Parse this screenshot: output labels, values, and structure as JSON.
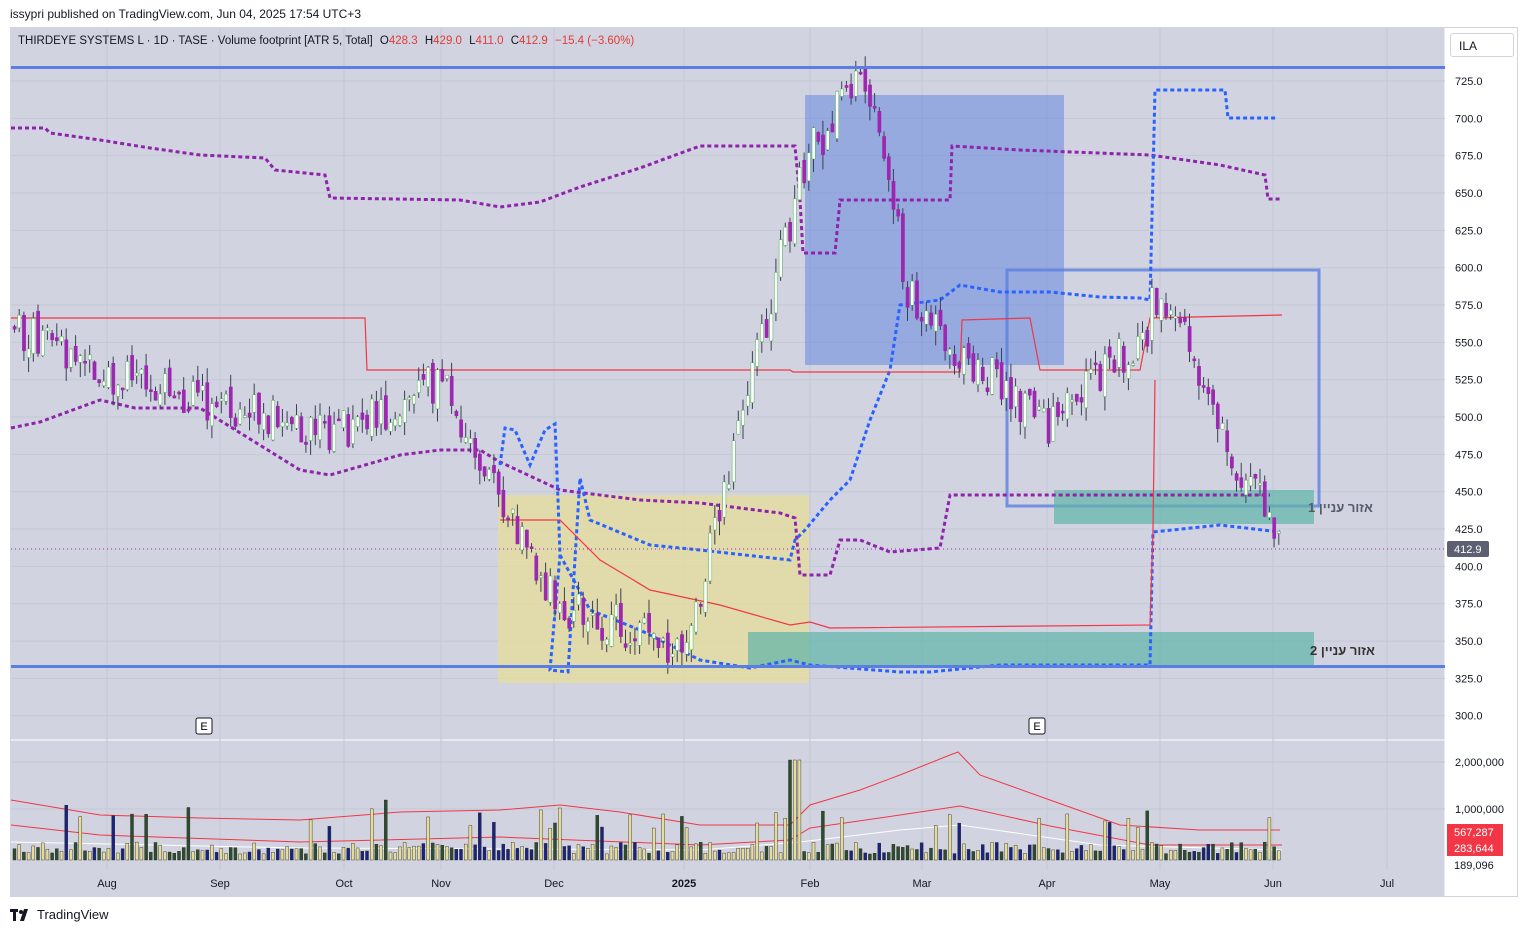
{
  "header": {
    "published": "issypri published on TradingView.com, Jun 04, 2025 17:54 UTC+3"
  },
  "legend": {
    "symbol": "THIRDEYE SYSTEMS L · 1D · TASE · Volume footprint [ATR 5, Total]",
    "o_label": "O",
    "o_value": "428.3",
    "h_label": "H",
    "h_value": "429.0",
    "l_label": "L",
    "l_value": "411.0",
    "c_label": "C",
    "c_value": "412.9",
    "change": "−15.4 (−3.60%)"
  },
  "currency_button": "ILA",
  "footer": {
    "brand": "TradingView"
  },
  "price_axis": {
    "ticks": [
      "725.0",
      "700.0",
      "675.0",
      "650.0",
      "625.0",
      "600.0",
      "575.0",
      "550.0",
      "525.0",
      "500.0",
      "475.0",
      "450.0",
      "425.0",
      "400.0",
      "375.0",
      "350.0",
      "325.0",
      "300.0"
    ],
    "last_price_label": "412.9"
  },
  "volume_axis": {
    "ticks": [
      "2,000,000",
      "1,000,000"
    ],
    "badges": [
      "567,287",
      "283,644",
      "189,096"
    ]
  },
  "time_axis": {
    "labels": [
      "Aug",
      "Sep",
      "Oct",
      "Nov",
      "Dec",
      "2025",
      "Feb",
      "Mar",
      "Apr",
      "May",
      "Jun",
      "Jul"
    ]
  },
  "earnings_markers": [
    "E",
    "E"
  ],
  "zones": {
    "zone1_label": "אזור עניין 1",
    "zone2_label": "אזור עניין 2"
  },
  "colors": {
    "up_candle": "#ffffff",
    "down_candle": "#9c27b0",
    "zone_blue": "#5b7fe0",
    "zone_yellow": "#e6dd9a",
    "zone_teal": "#5fb3a8",
    "dashed_purple": "#8e24aa",
    "dashed_blue": "#2962ff",
    "red_line": "#f23645",
    "axis_red_badge": "#f23645",
    "plot_bg": "#d1d4e0"
  },
  "chart_data": {
    "type": "candlestick",
    "y_range": [
      290,
      740
    ],
    "horizontal_levels": [
      {
        "name": "",
        "value": 734
      },
      {
        "name": "",
        "value": 333
      }
    ],
    "close_series": [
      {
        "date": "2024-07",
        "close": 560
      },
      {
        "date": "2024-08",
        "close": 530
      },
      {
        "date": "2024-09",
        "close": 505
      },
      {
        "date": "2024-10",
        "close": 490
      },
      {
        "date": "2024-11",
        "close": 525
      },
      {
        "date": "2024-12",
        "close": 375
      },
      {
        "date": "2025-01",
        "close": 345
      },
      {
        "date": "2025-02",
        "close": 690
      },
      {
        "date": "2025-03",
        "close": 565
      },
      {
        "date": "2025-04",
        "close": 495
      },
      {
        "date": "2025-05",
        "close": 565
      },
      {
        "date": "2025-06",
        "close": 412.9
      }
    ],
    "last_ohlc": {
      "open": 428.3,
      "high": 429.0,
      "low": 411.0,
      "close": 412.9
    }
  }
}
